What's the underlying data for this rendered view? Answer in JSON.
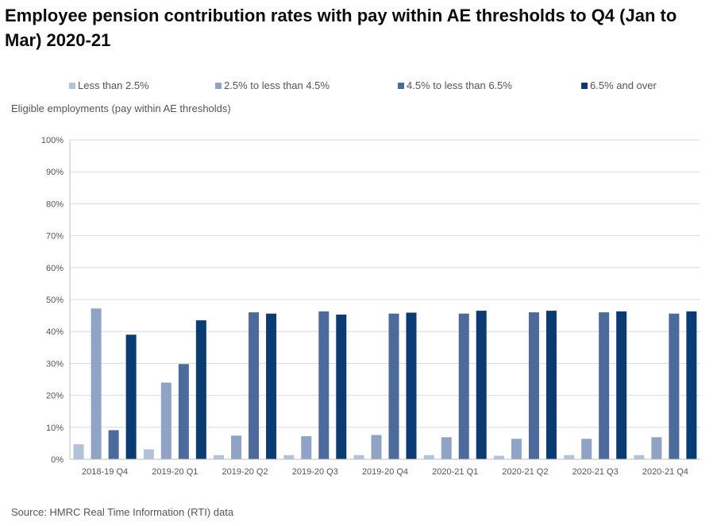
{
  "chart_data": {
    "type": "bar",
    "title": "Employee pension contribution rates with pay within AE thresholds to Q4 (Jan to Mar) 2020-21",
    "ylabel": "Eligible employments (pay within AE thresholds)",
    "source": "Source: HMRC Real Time Information (RTI) data",
    "categories": [
      "2018-19 Q4",
      "2019-20 Q1",
      "2019-20 Q2",
      "2019-20 Q3",
      "2019-20 Q4",
      "2020-21 Q1",
      "2020-21 Q2",
      "2020-21 Q3",
      "2020-21 Q4"
    ],
    "ylim": [
      0,
      100
    ],
    "yticks": [
      "0%",
      "10%",
      "20%",
      "30%",
      "40%",
      "50%",
      "60%",
      "70%",
      "80%",
      "90%",
      "100%"
    ],
    "grid": true,
    "legend_position": "top",
    "series": [
      {
        "name": "Less than 2.5%",
        "color": "#b3c2db",
        "values": [
          4.7,
          3.1,
          1.3,
          1.3,
          1.3,
          1.3,
          1.1,
          1.3,
          1.3
        ]
      },
      {
        "name": "2.5% to less than 4.5%",
        "color": "#8ea3c6",
        "values": [
          47.2,
          24.0,
          7.4,
          7.2,
          7.6,
          6.9,
          6.4,
          6.4,
          6.9
        ]
      },
      {
        "name": "4.5% to less than 6.5%",
        "color": "#4c6a9b",
        "values": [
          9.1,
          29.8,
          46.0,
          46.3,
          45.6,
          45.6,
          46.0,
          46.0,
          45.6
        ]
      },
      {
        "name": "6.5% and over",
        "color": "#0b3b73",
        "values": [
          39.0,
          43.5,
          45.6,
          45.3,
          45.9,
          46.5,
          46.5,
          46.3,
          46.3
        ]
      }
    ]
  }
}
